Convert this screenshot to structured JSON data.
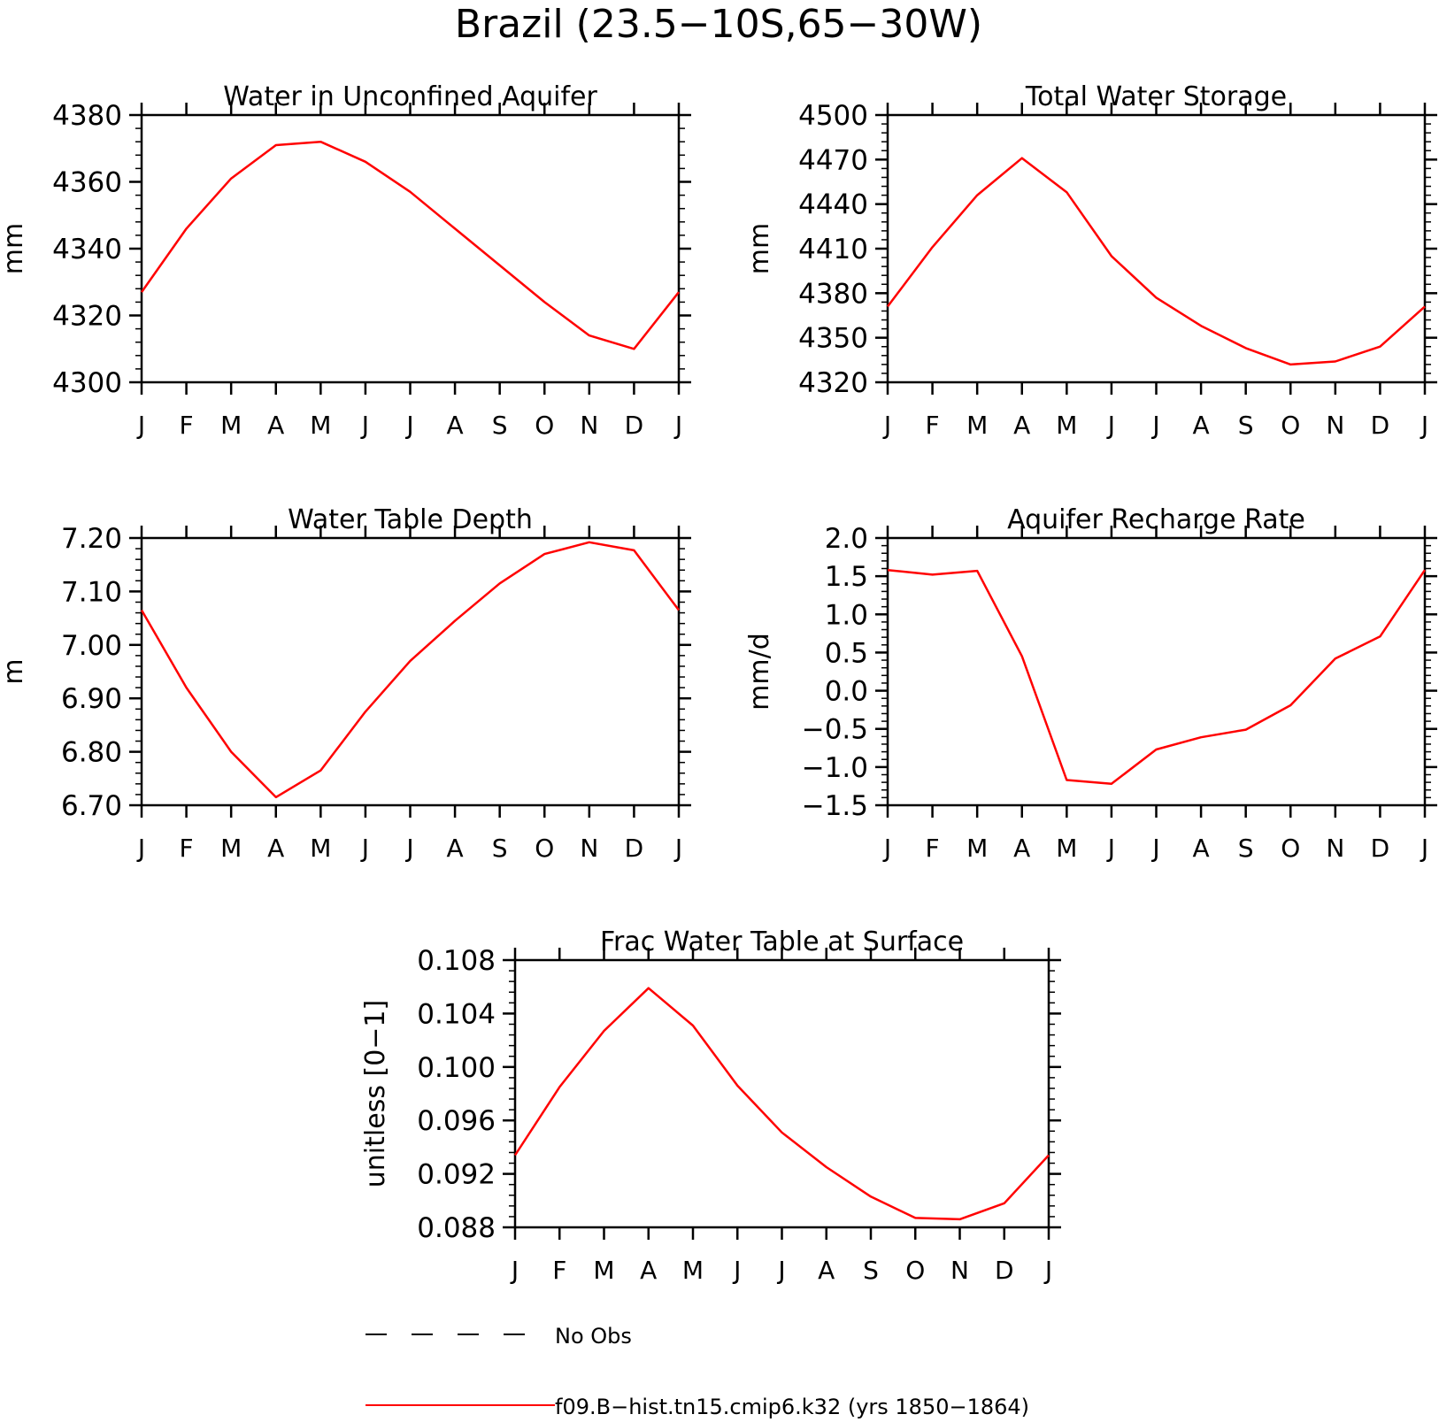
{
  "figure": {
    "title": "Brazil (23.5−10S,65−30W)"
  },
  "legend": {
    "placement": "bottom",
    "entries": [
      {
        "label": "No Obs",
        "color": "#000000",
        "style": "dashed"
      },
      {
        "label": "f09.B−hist.tn15.cmip6.k32 (yrs 1850−1864)",
        "color": "#ff0000",
        "style": "solid"
      }
    ]
  },
  "chart_data": [
    {
      "type": "line",
      "title": "Water in Unconfined Aquifer",
      "ylabel": "mm",
      "xlabel": "",
      "categories": [
        "J",
        "F",
        "M",
        "A",
        "M",
        "J",
        "J",
        "A",
        "S",
        "O",
        "N",
        "D",
        "J"
      ],
      "ylim": [
        4300,
        4380
      ],
      "yticks": [
        "4300",
        "4320",
        "4340",
        "4360",
        "4380"
      ],
      "series": [
        {
          "color": "#ff0000",
          "values": [
            4327,
            4346,
            4361,
            4371,
            4372,
            4366,
            4357,
            4346,
            4335,
            4324,
            4314,
            4310,
            4327
          ]
        }
      ]
    },
    {
      "type": "line",
      "title": "Total Water Storage",
      "ylabel": "mm",
      "xlabel": "",
      "categories": [
        "J",
        "F",
        "M",
        "A",
        "M",
        "J",
        "J",
        "A",
        "S",
        "O",
        "N",
        "D",
        "J"
      ],
      "ylim": [
        4320,
        4500
      ],
      "yticks": [
        "4320",
        "4350",
        "4380",
        "4410",
        "4440",
        "4470",
        "4500"
      ],
      "series": [
        {
          "color": "#ff0000",
          "values": [
            4371,
            4411,
            4446,
            4471,
            4448,
            4405,
            4377,
            4358,
            4343,
            4332,
            4334,
            4344,
            4371
          ]
        }
      ]
    },
    {
      "type": "line",
      "title": "Water Table Depth",
      "ylabel": "m",
      "xlabel": "",
      "categories": [
        "J",
        "F",
        "M",
        "A",
        "M",
        "J",
        "J",
        "A",
        "S",
        "O",
        "N",
        "D",
        "J"
      ],
      "ylim": [
        6.7,
        7.2
      ],
      "yticks": [
        "6.70",
        "6.80",
        "6.90",
        "7.00",
        "7.10",
        "7.20"
      ],
      "series": [
        {
          "color": "#ff0000",
          "values": [
            7.065,
            6.92,
            6.8,
            6.715,
            6.765,
            6.875,
            6.97,
            7.045,
            7.115,
            7.17,
            7.192,
            7.177,
            7.065
          ]
        }
      ]
    },
    {
      "type": "line",
      "title": "Aquifer Recharge Rate",
      "ylabel": "mm/d",
      "xlabel": "",
      "categories": [
        "J",
        "F",
        "M",
        "A",
        "M",
        "J",
        "J",
        "A",
        "S",
        "O",
        "N",
        "D",
        "J"
      ],
      "ylim": [
        -1.5,
        2.0
      ],
      "yticks": [
        "−1.5",
        "−1.0",
        "−0.5",
        "0.0",
        "0.5",
        "1.0",
        "1.5",
        "2.0"
      ],
      "series": [
        {
          "color": "#ff0000",
          "values": [
            1.58,
            1.52,
            1.57,
            0.45,
            -1.17,
            -1.22,
            -0.77,
            -0.61,
            -0.51,
            -0.19,
            0.42,
            0.71,
            1.58
          ]
        }
      ]
    },
    {
      "type": "line",
      "title": "Frac Water Table at Surface",
      "ylabel": "unitless [0−1]",
      "xlabel": "",
      "categories": [
        "J",
        "F",
        "M",
        "A",
        "M",
        "J",
        "J",
        "A",
        "S",
        "O",
        "N",
        "D",
        "J"
      ],
      "ylim": [
        0.088,
        0.108
      ],
      "yticks": [
        "0.088",
        "0.092",
        "0.096",
        "0.100",
        "0.104",
        "0.108"
      ],
      "series": [
        {
          "color": "#ff0000",
          "values": [
            0.0934,
            0.0985,
            0.1027,
            0.1059,
            0.1031,
            0.0986,
            0.0951,
            0.0925,
            0.0903,
            0.0887,
            0.0886,
            0.0898,
            0.0934
          ]
        }
      ]
    }
  ]
}
